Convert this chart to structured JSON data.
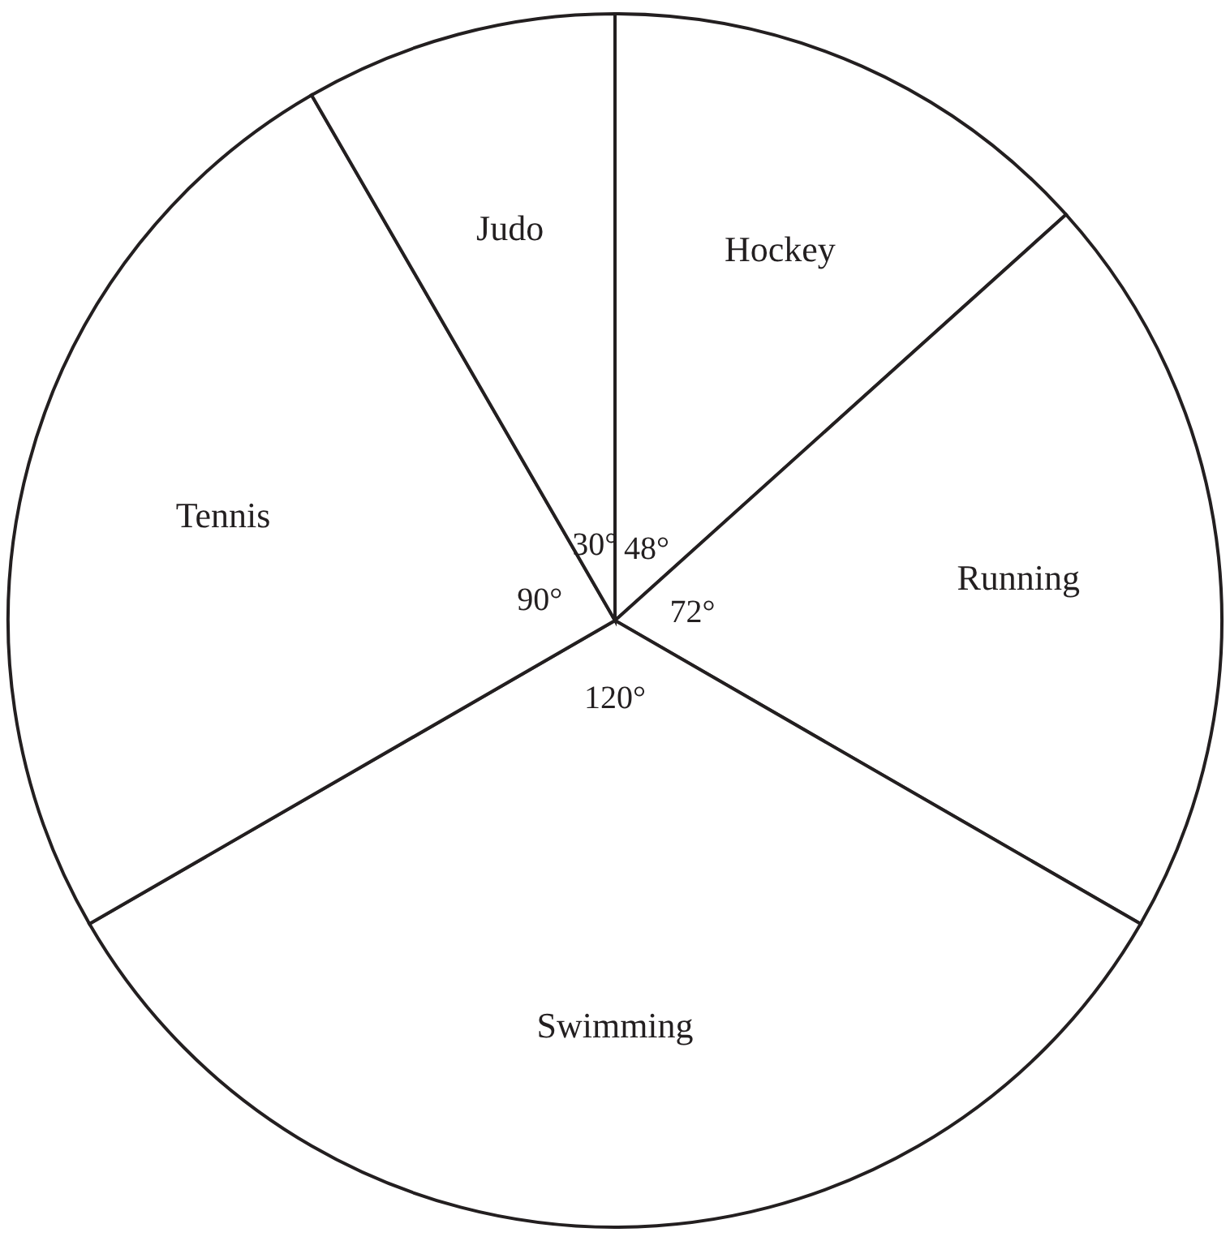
{
  "chart_data": {
    "type": "pie",
    "categories": [
      "Hockey",
      "Running",
      "Swimming",
      "Tennis",
      "Judo"
    ],
    "values": [
      48,
      72,
      120,
      90,
      30
    ],
    "value_labels": [
      "48°",
      "72°",
      "120°",
      "90°",
      "30°"
    ],
    "colors": [
      "#ffffff",
      "#ffffff",
      "#ffffff",
      "#ffffff",
      "#ffffff"
    ]
  }
}
